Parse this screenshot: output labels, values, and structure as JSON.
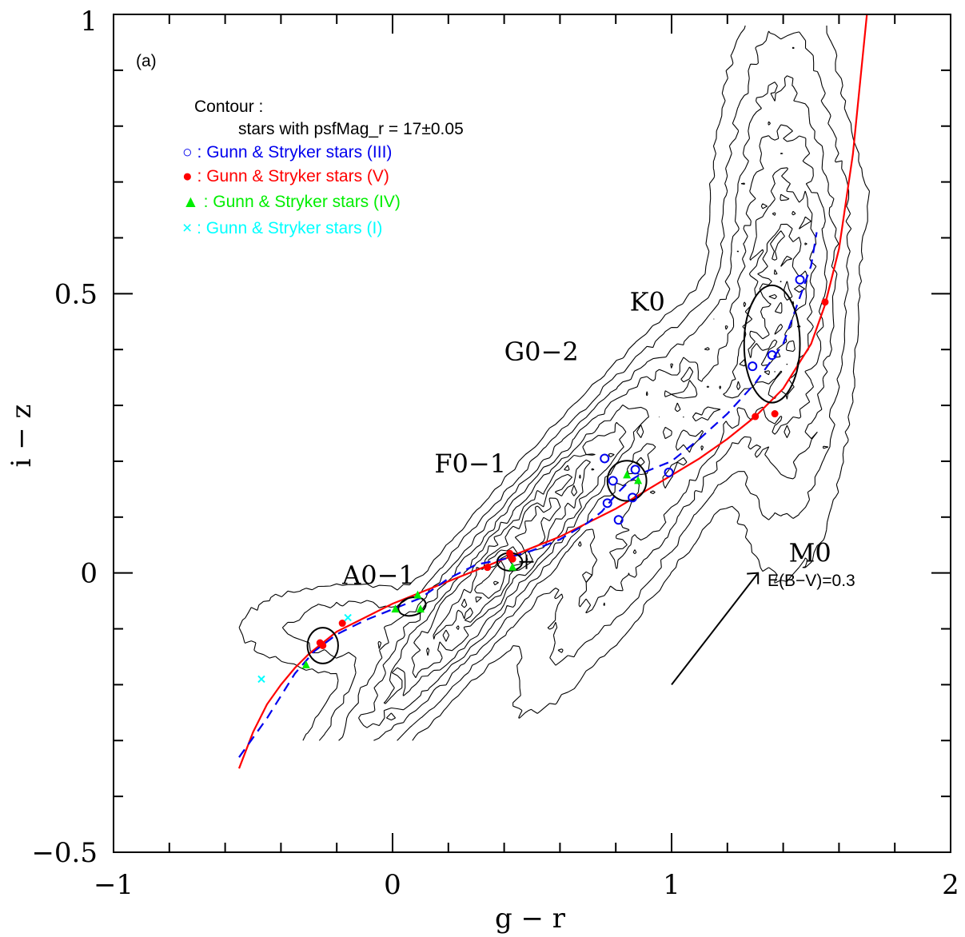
{
  "chart_data": {
    "type": "scatter",
    "panel_label": "(a)",
    "xlabel": "g − r",
    "ylabel": "i − z",
    "xlim": [
      -1,
      2
    ],
    "ylim": [
      -0.5,
      1
    ],
    "x_ticks": [
      {
        "value": -1,
        "label": "−1"
      },
      {
        "value": 0,
        "label": "0"
      },
      {
        "value": 1,
        "label": "1"
      },
      {
        "value": 2,
        "label": "2"
      }
    ],
    "y_ticks": [
      {
        "value": -0.5,
        "label": "−0.5"
      },
      {
        "value": 0,
        "label": "0"
      },
      {
        "value": 0.5,
        "label": "0.5"
      },
      {
        "value": 1,
        "label": "1"
      }
    ],
    "x_minor_step": 0.2,
    "y_minor_step": 0.1,
    "grid": false,
    "legend": {
      "placement": "top-left",
      "title": "Contour :",
      "subtitle": "stars with psfMag_r = 17±0.05",
      "entries": [
        {
          "marker": "circle-open",
          "color": "#0000ee",
          "label": "○ : Gunn & Stryker stars (III)"
        },
        {
          "marker": "circle-filled",
          "color": "#ff0000",
          "label": "● : Gunn & Stryker stars (V)"
        },
        {
          "marker": "triangle",
          "color": "#00ee00",
          "label": "▲ : Gunn & Stryker stars (IV)"
        },
        {
          "marker": "cross",
          "color": "#00ffff",
          "label": "× : Gunn & Stryker stars (I)"
        }
      ]
    },
    "annotations": [
      {
        "text": "A0−1",
        "x": -0.18,
        "y": -0.02
      },
      {
        "text": "F0−1",
        "x": 0.15,
        "y": 0.18
      },
      {
        "text": "G0−2",
        "x": 0.4,
        "y": 0.38
      },
      {
        "text": "K0",
        "x": 0.85,
        "y": 0.47
      },
      {
        "text": "M0",
        "x": 1.42,
        "y": 0.02
      }
    ],
    "reddening": {
      "label": "E(B−V)=0.3",
      "from": [
        1.0,
        -0.2
      ],
      "to": [
        1.31,
        0.0
      ]
    },
    "series": [
      {
        "name": "Gunn & Stryker stars (III)",
        "marker": "circle-open",
        "color": "#0000ee",
        "points": [
          [
            0.76,
            0.205
          ],
          [
            0.77,
            0.125
          ],
          [
            0.79,
            0.165
          ],
          [
            0.81,
            0.095
          ],
          [
            0.86,
            0.135
          ],
          [
            0.87,
            0.185
          ],
          [
            0.99,
            0.18
          ],
          [
            1.29,
            0.37
          ],
          [
            1.36,
            0.39
          ],
          [
            1.46,
            0.525
          ]
        ]
      },
      {
        "name": "Gunn & Stryker stars (V)",
        "marker": "circle-filled",
        "color": "#ff0000",
        "points": [
          [
            -0.26,
            -0.125
          ],
          [
            -0.25,
            -0.13
          ],
          [
            -0.18,
            -0.09
          ],
          [
            0.34,
            0.01
          ],
          [
            0.42,
            0.035
          ],
          [
            0.43,
            0.025
          ],
          [
            1.3,
            0.28
          ],
          [
            1.37,
            0.285
          ],
          [
            1.55,
            0.485
          ]
        ]
      },
      {
        "name": "Gunn & Stryker stars (IV)",
        "marker": "triangle",
        "color": "#00ee00",
        "points": [
          [
            -0.31,
            -0.165
          ],
          [
            0.01,
            -0.065
          ],
          [
            0.09,
            -0.04
          ],
          [
            0.1,
            -0.065
          ],
          [
            0.43,
            0.01
          ],
          [
            0.84,
            0.175
          ],
          [
            0.88,
            0.165
          ]
        ]
      },
      {
        "name": "Gunn & Stryker stars (I)",
        "marker": "cross",
        "color": "#00ffff",
        "points": [
          [
            -0.47,
            -0.19
          ],
          [
            -0.16,
            -0.08
          ]
        ]
      },
      {
        "name": "",
        "style": "solid-line",
        "color": "#ff0000",
        "points": [
          [
            -0.55,
            -0.35
          ],
          [
            -0.5,
            -0.285
          ],
          [
            -0.45,
            -0.235
          ],
          [
            -0.4,
            -0.2
          ],
          [
            -0.35,
            -0.17
          ],
          [
            -0.3,
            -0.145
          ],
          [
            -0.25,
            -0.125
          ],
          [
            -0.2,
            -0.105
          ],
          [
            -0.1,
            -0.08
          ],
          [
            0.0,
            -0.055
          ],
          [
            0.1,
            -0.035
          ],
          [
            0.2,
            -0.015
          ],
          [
            0.3,
            0.005
          ],
          [
            0.4,
            0.025
          ],
          [
            0.5,
            0.045
          ],
          [
            0.6,
            0.065
          ],
          [
            0.7,
            0.09
          ],
          [
            0.8,
            0.115
          ],
          [
            0.9,
            0.145
          ],
          [
            1.0,
            0.175
          ],
          [
            1.1,
            0.205
          ],
          [
            1.2,
            0.24
          ],
          [
            1.3,
            0.28
          ],
          [
            1.4,
            0.33
          ],
          [
            1.5,
            0.41
          ],
          [
            1.55,
            0.48
          ],
          [
            1.6,
            0.58
          ],
          [
            1.65,
            0.75
          ],
          [
            1.68,
            0.9
          ],
          [
            1.7,
            1.0
          ]
        ]
      },
      {
        "name": "",
        "style": "dashed-line",
        "color": "#0000ee",
        "points": [
          [
            -0.55,
            -0.33
          ],
          [
            -0.45,
            -0.26
          ],
          [
            -0.35,
            -0.18
          ],
          [
            -0.28,
            -0.14
          ],
          [
            -0.2,
            -0.11
          ],
          [
            -0.1,
            -0.085
          ],
          [
            0.0,
            -0.065
          ],
          [
            0.1,
            -0.045
          ],
          [
            0.2,
            -0.01
          ],
          [
            0.3,
            0.015
          ],
          [
            0.4,
            0.025
          ],
          [
            0.5,
            0.04
          ],
          [
            0.6,
            0.06
          ],
          [
            0.7,
            0.09
          ],
          [
            0.75,
            0.11
          ],
          [
            0.8,
            0.14
          ],
          [
            0.85,
            0.165
          ],
          [
            0.9,
            0.18
          ],
          [
            1.0,
            0.2
          ],
          [
            1.1,
            0.24
          ],
          [
            1.2,
            0.285
          ],
          [
            1.3,
            0.34
          ],
          [
            1.4,
            0.41
          ],
          [
            1.5,
            0.55
          ],
          [
            1.52,
            0.61
          ]
        ]
      }
    ],
    "ellipses": [
      {
        "cx": -0.25,
        "cy": -0.13,
        "rx": 0.055,
        "ry": 0.032,
        "angle": 0
      },
      {
        "cx": 0.07,
        "cy": -0.06,
        "rx": 0.05,
        "ry": 0.016,
        "angle": 15
      },
      {
        "cx": 0.42,
        "cy": 0.02,
        "rx": 0.045,
        "ry": 0.016,
        "angle": 0
      },
      {
        "cx": 0.84,
        "cy": 0.165,
        "rx": 0.07,
        "ry": 0.036,
        "angle": 0
      },
      {
        "cx": 1.36,
        "cy": 0.41,
        "rx": 0.1,
        "ry": 0.105,
        "angle": 0
      }
    ]
  }
}
